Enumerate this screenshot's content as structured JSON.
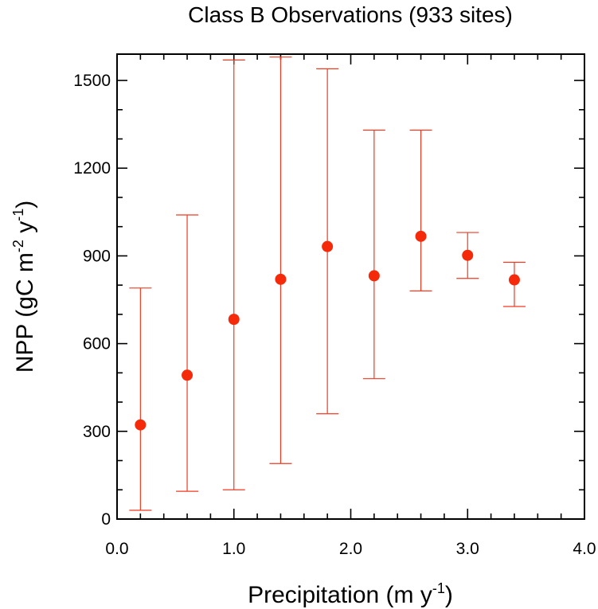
{
  "chart_data": {
    "type": "scatter",
    "title": "Class B Observations (933 sites)",
    "xlabel": "Precipitation (m y",
    "xlabel_sup": "-1",
    "xlabel_tail": ")",
    "ylabel_parts": [
      "NPP (gC m",
      "-2",
      " y",
      "-1",
      ")"
    ],
    "xlim": [
      0.0,
      4.0
    ],
    "ylim": [
      0,
      1590
    ],
    "x_ticks": [
      0.0,
      1.0,
      2.0,
      3.0,
      4.0
    ],
    "x_tick_labels": [
      "0.0",
      "1.0",
      "2.0",
      "3.0",
      "4.0"
    ],
    "x_minor_step": 0.2,
    "y_ticks": [
      0,
      300,
      600,
      900,
      1200,
      1500
    ],
    "y_tick_labels": [
      "0",
      "300",
      "600",
      "900",
      "1200",
      "1500"
    ],
    "y_minor_step": 100,
    "grid": false,
    "colors": {
      "marker": "#f52a0a",
      "error_bar": "#f03a20"
    },
    "series": [
      {
        "points": [
          {
            "x": 0.2,
            "y": 322,
            "low": 30,
            "high": 790
          },
          {
            "x": 0.6,
            "y": 492,
            "low": 95,
            "high": 1040
          },
          {
            "x": 1.0,
            "y": 683,
            "low": 100,
            "high": 1570
          },
          {
            "x": 1.4,
            "y": 820,
            "low": 190,
            "high": 1580
          },
          {
            "x": 1.8,
            "y": 932,
            "low": 360,
            "high": 1540
          },
          {
            "x": 2.2,
            "y": 832,
            "low": 480,
            "high": 1330
          },
          {
            "x": 2.6,
            "y": 967,
            "low": 780,
            "high": 1330
          },
          {
            "x": 3.0,
            "y": 902,
            "low": 823,
            "high": 980
          },
          {
            "x": 3.4,
            "y": 818,
            "low": 727,
            "high": 878
          }
        ]
      }
    ]
  }
}
